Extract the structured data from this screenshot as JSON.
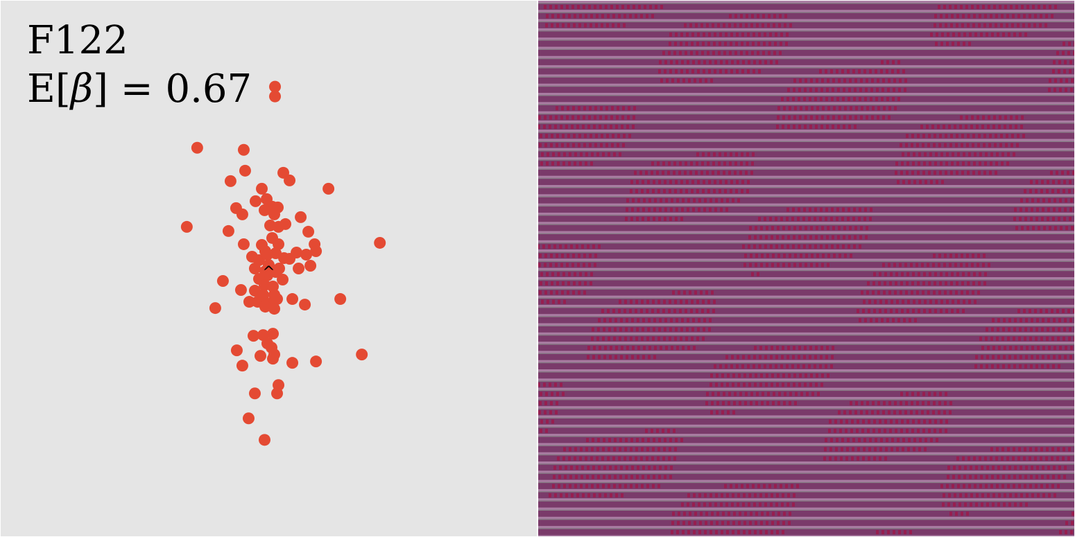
{
  "chart_data": {
    "type": "scatter",
    "title": "F122",
    "stat": {
      "prefix": "E[",
      "symbol": "β",
      "suffix": "] = ",
      "value": "0.67"
    },
    "marker_color": "#e44a33",
    "center_marker": {
      "x": 0,
      "y": 0,
      "label": "^"
    },
    "xlim": [
      -386,
      386
    ],
    "ylim": [
      -386,
      386
    ],
    "grid": false,
    "points": [
      [
        9,
        262
      ],
      [
        9,
        248
      ],
      [
        -103,
        174
      ],
      [
        -36,
        171
      ],
      [
        -34,
        141
      ],
      [
        21,
        138
      ],
      [
        30,
        127
      ],
      [
        86,
        115
      ],
      [
        -55,
        126
      ],
      [
        -10,
        115
      ],
      [
        -19,
        97
      ],
      [
        -3,
        100
      ],
      [
        5,
        89
      ],
      [
        13,
        88
      ],
      [
        -47,
        87
      ],
      [
        -38,
        78
      ],
      [
        -6,
        84
      ],
      [
        8,
        78
      ],
      [
        46,
        74
      ],
      [
        -118,
        60
      ],
      [
        -58,
        54
      ],
      [
        14,
        60
      ],
      [
        57,
        53
      ],
      [
        24,
        64
      ],
      [
        2,
        62
      ],
      [
        -36,
        35
      ],
      [
        5,
        44
      ],
      [
        -10,
        34
      ],
      [
        14,
        35
      ],
      [
        66,
        35
      ],
      [
        68,
        25
      ],
      [
        160,
        37
      ],
      [
        -5,
        25
      ],
      [
        10,
        22
      ],
      [
        40,
        23
      ],
      [
        54,
        20
      ],
      [
        60,
        4
      ],
      [
        -24,
        17
      ],
      [
        -14,
        12
      ],
      [
        -2,
        20
      ],
      [
        22,
        15
      ],
      [
        30,
        14
      ],
      [
        0,
        5
      ],
      [
        -20,
        0
      ],
      [
        -5,
        -4
      ],
      [
        15,
        0
      ],
      [
        43,
        0
      ],
      [
        -2,
        -10
      ],
      [
        10,
        -5
      ],
      [
        -14,
        -15
      ],
      [
        20,
        -16
      ],
      [
        -66,
        -18
      ],
      [
        -6,
        -24
      ],
      [
        6,
        -26
      ],
      [
        -40,
        -31
      ],
      [
        -20,
        -32
      ],
      [
        -8,
        -38
      ],
      [
        8,
        -38
      ],
      [
        -28,
        -48
      ],
      [
        -2,
        -50
      ],
      [
        12,
        -44
      ],
      [
        -16,
        -48
      ],
      [
        34,
        -44
      ],
      [
        52,
        -52
      ],
      [
        103,
        -44
      ],
      [
        -77,
        -57
      ],
      [
        -5,
        -55
      ],
      [
        8,
        -58
      ],
      [
        -22,
        -97
      ],
      [
        -8,
        -96
      ],
      [
        6,
        -94
      ],
      [
        -2,
        -108
      ],
      [
        4,
        -114
      ],
      [
        -46,
        -118
      ],
      [
        134,
        -124
      ],
      [
        -12,
        -126
      ],
      [
        6,
        -130
      ],
      [
        8,
        -124
      ],
      [
        -38,
        -140
      ],
      [
        34,
        -136
      ],
      [
        68,
        -134
      ],
      [
        14,
        -168
      ],
      [
        -20,
        -180
      ],
      [
        12,
        -180
      ],
      [
        -29,
        -216
      ],
      [
        -6,
        -247
      ]
    ]
  },
  "texture": {
    "base_color": "#7a3a6a",
    "stripe_color": "#b58fb0",
    "highlight_color": "#98c9a9",
    "dot_color": "#9c1a4a"
  }
}
